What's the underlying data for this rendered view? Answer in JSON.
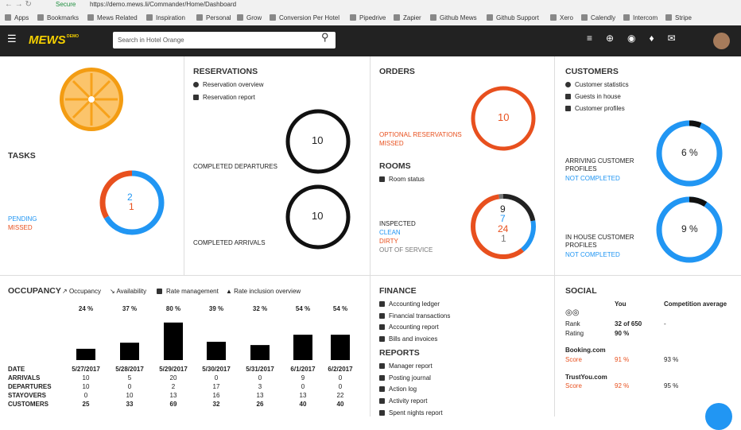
{
  "browser": {
    "secure": "Secure",
    "url": "https://demo.mews.li/Commander/Home/Dashboard",
    "bookmarks": [
      "Apps",
      "Bookmarks",
      "Mews Related",
      "Inspiration",
      "Personal",
      "Grow",
      "Conversion Per Hotel",
      "Pipedrive",
      "Zapier",
      "Github Mews",
      "Github Support",
      "Xero",
      "Calendly",
      "Intercom",
      "Stripe"
    ]
  },
  "nav": {
    "logo": "MEWS",
    "badge": "DEMO",
    "search_placeholder": "Search in Hotel Orange"
  },
  "tasks": {
    "title": "TASKS",
    "pending": {
      "label": "PENDING",
      "value": 2
    },
    "missed": {
      "label": "MISSED",
      "value": 1
    }
  },
  "reservations": {
    "title": "RESERVATIONS",
    "links": [
      "Reservation overview",
      "Reservation report"
    ],
    "completed_departures": {
      "label": "COMPLETED DEPARTURES",
      "value": 10
    },
    "completed_arrivals": {
      "label": "COMPLETED ARRIVALS",
      "value": 10
    }
  },
  "orders": {
    "title": "ORDERS",
    "optional_reservations": {
      "label": "OPTIONAL RESERVATIONS",
      "status": "MISSED",
      "value": 10
    }
  },
  "rooms": {
    "title": "ROOMS",
    "links": [
      "Room status"
    ],
    "statuses": [
      {
        "label": "INSPECTED",
        "value": 9
      },
      {
        "label": "CLEAN",
        "value": 7
      },
      {
        "label": "DIRTY",
        "value": 24
      },
      {
        "label": "OUT OF SERVICE",
        "value": 1
      }
    ]
  },
  "customers": {
    "title": "CUSTOMERS",
    "links": [
      "Customer statistics",
      "Guests in house",
      "Customer profiles"
    ],
    "arriving": {
      "label": "ARRIVING CUSTOMER PROFILES",
      "status": "NOT COMPLETED",
      "value": 6,
      "value_label": "6 %"
    },
    "in_house": {
      "label": "IN HOUSE CUSTOMER PROFILES",
      "status": "NOT COMPLETED",
      "value": 9,
      "value_label": "9 %"
    }
  },
  "occupancy": {
    "title": "OCCUPANCY",
    "tabs": [
      "Occupancy",
      "Availability",
      "Rate management",
      "Rate inclusion overview"
    ],
    "values": [
      24,
      37,
      80,
      39,
      32,
      54,
      54
    ],
    "value_labels": [
      "24 %",
      "37 %",
      "80 %",
      "39 %",
      "32 %",
      "54 %",
      "54 %"
    ],
    "rows": [
      {
        "label": "DATE",
        "values": [
          "5/27/2017",
          "5/28/2017",
          "5/29/2017",
          "5/30/2017",
          "5/31/2017",
          "6/1/2017",
          "6/2/2017"
        ]
      },
      {
        "label": "ARRIVALS",
        "values": [
          10,
          5,
          20,
          0,
          0,
          9,
          0
        ]
      },
      {
        "label": "DEPARTURES",
        "values": [
          10,
          0,
          2,
          17,
          3,
          0,
          0
        ]
      },
      {
        "label": "STAYOVERS",
        "values": [
          0,
          10,
          13,
          16,
          13,
          13,
          22
        ]
      },
      {
        "label": "CUSTOMERS",
        "values": [
          25,
          33,
          69,
          32,
          26,
          40,
          40
        ]
      }
    ]
  },
  "finance": {
    "title": "FINANCE",
    "links": [
      "Accounting ledger",
      "Financial transactions",
      "Accounting report",
      "Bills and invoices"
    ]
  },
  "reports": {
    "title": "REPORTS",
    "links": [
      "Manager report",
      "Posting journal",
      "Action log",
      "Activity report",
      "Spent nights report"
    ]
  },
  "social": {
    "title": "SOCIAL",
    "columns": [
      "You",
      "Competition average"
    ],
    "tripadvisor": [
      {
        "label": "Rank",
        "you": "32 of 650",
        "competition": "-"
      },
      {
        "label": "Rating",
        "you": "90 %"
      }
    ],
    "sites": [
      {
        "name": "Booking.com",
        "label": "Score",
        "you": "91 %",
        "competition": "93 %"
      },
      {
        "name": "TrustYou.com",
        "label": "Score",
        "you": "92 %",
        "competition": "95 %"
      }
    ]
  }
}
